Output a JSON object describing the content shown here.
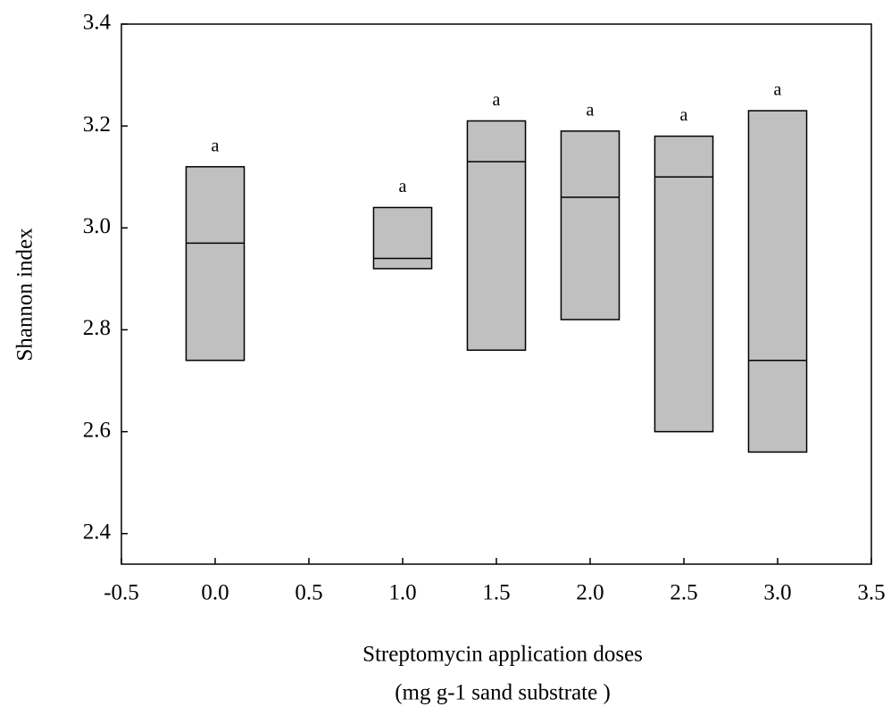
{
  "chart_data": {
    "type": "floating_box",
    "ylabel": "Shannon index",
    "xlabel": [
      "Streptomycin application doses",
      "(mg g-1 sand substrate )"
    ],
    "x": [
      0,
      1,
      1.5,
      2,
      2.5,
      3
    ],
    "upper": [
      3.12,
      3.04,
      3.21,
      3.19,
      3.18,
      3.23
    ],
    "median": [
      2.97,
      2.94,
      3.13,
      3.06,
      3.1,
      2.74
    ],
    "lower": [
      2.74,
      2.92,
      2.76,
      2.82,
      2.6,
      2.56
    ],
    "annotations": [
      "a",
      "a",
      "a",
      "a",
      "a",
      "a"
    ],
    "color": "#c0c0c0",
    "xlim": [
      -0.5,
      3.5
    ],
    "xticks": [
      -0.5,
      {
        "value": 0,
        "label": "0.0"
      },
      0.5,
      {
        "value": 1,
        "label": "1.0"
      },
      1.5,
      {
        "value": 2,
        "label": "2.0"
      },
      2.5,
      {
        "value": 3,
        "label": "3.0"
      },
      3.5
    ],
    "ylim": [
      2.34,
      3.4
    ],
    "yticks": [
      2.4,
      2.6,
      2.8,
      {
        "value": 3,
        "label": "3.0"
      },
      3.2,
      3.4
    ]
  }
}
